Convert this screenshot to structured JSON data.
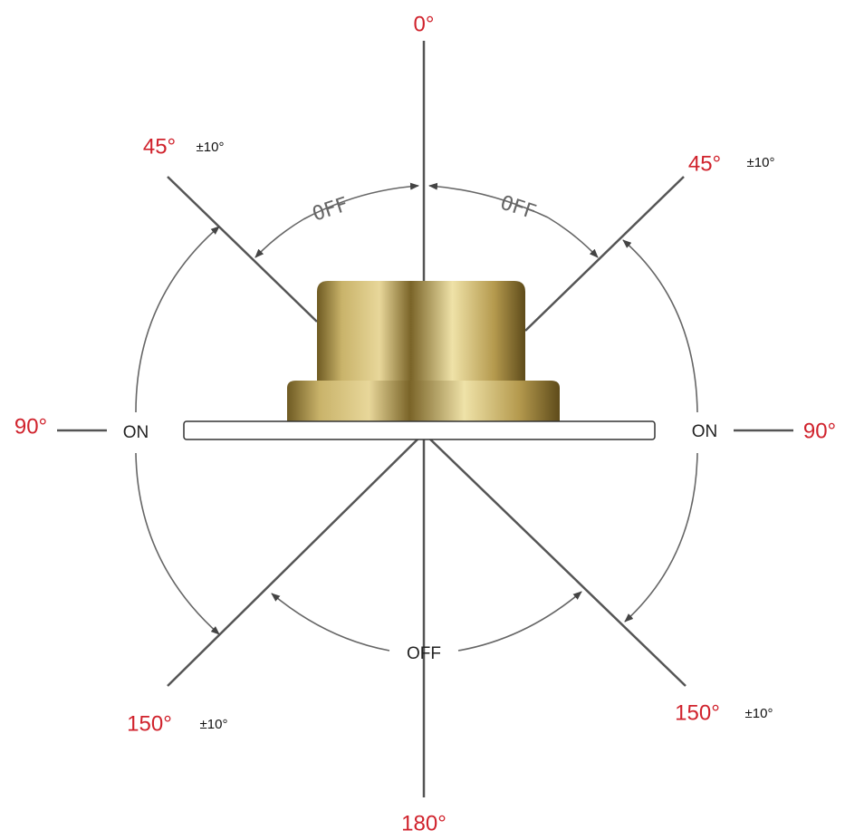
{
  "angles": {
    "top": "0°",
    "upper_left": "45°",
    "upper_right": "45°",
    "left": "90°",
    "right": "90°",
    "lower_left": "150°",
    "lower_right": "150°",
    "bottom": "180°"
  },
  "tolerances": {
    "upper_left": "±10°",
    "upper_right": "±10°",
    "lower_left": "±10°",
    "lower_right": "±10°"
  },
  "zones": {
    "top_left": "OFF",
    "top_right": "OFF",
    "left": "ON",
    "right": "ON",
    "bottom": "OFF"
  }
}
